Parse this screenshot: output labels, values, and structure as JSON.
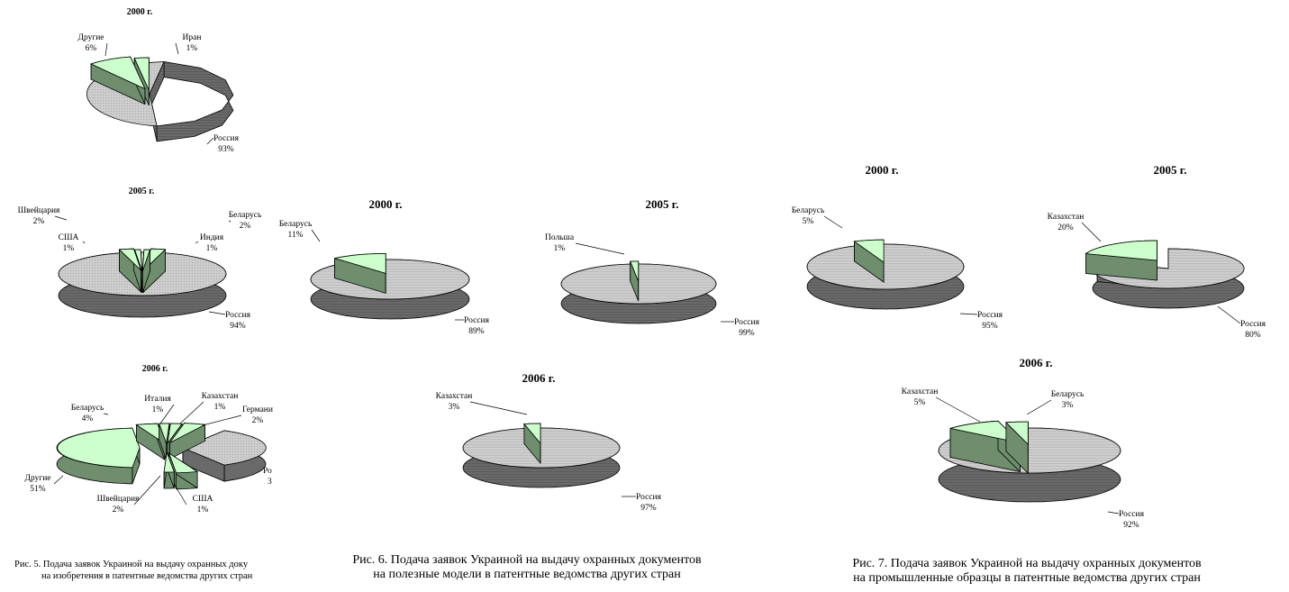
{
  "colors": {
    "russia_top": "#cdcdcd",
    "russia_side": "#6a6a6a",
    "slice_top": "#ccffcc",
    "slice_side": "#6e8e6e",
    "outline": "#000000"
  },
  "captions": {
    "fig5": [
      "Рис. 5. Подача заявок Украиной на выдачу охранных доку",
      "на изобретения в патентные ведомства других стран"
    ],
    "fig6": [
      "Рис. 6. Подача заявок Украиной на выдачу охранных документов",
      "на полезные модели в патентные ведомства других стран"
    ],
    "fig7": [
      "Рис. 7. Подача заявок Украиной на выдачу охранных документов",
      "на промышленные образцы в патентные ведомства других стран"
    ]
  },
  "chart_data": [
    {
      "figure": "Рис. 5",
      "type": "pie",
      "title": "2000 г.",
      "slices": [
        {
          "label": "Россия",
          "value": 93,
          "value_label": "93%"
        },
        {
          "label": "Иран",
          "value": 1,
          "value_label": "1%"
        },
        {
          "label": "Другие",
          "value": 6,
          "value_label": "6%"
        }
      ]
    },
    {
      "figure": "Рис. 5",
      "type": "pie",
      "title": "2005 г.",
      "slices": [
        {
          "label": "Россия",
          "value": 94,
          "value_label": "94%"
        },
        {
          "label": "Беларусь",
          "value": 2,
          "value_label": "2%"
        },
        {
          "label": "Индия",
          "value": 1,
          "value_label": "1%"
        },
        {
          "label": "США",
          "value": 1,
          "value_label": "1%"
        },
        {
          "label": "Швейцария",
          "value": 2,
          "value_label": "2%"
        }
      ]
    },
    {
      "figure": "Рис. 5",
      "type": "pie",
      "title": "2006 г.",
      "slices": [
        {
          "label": "Ро",
          "value": 3,
          "value_label": "3"
        },
        {
          "label": "Другие",
          "value": 51,
          "value_label": "51%"
        },
        {
          "label": "Беларусь",
          "value": 4,
          "value_label": "4%"
        },
        {
          "label": "Италия",
          "value": 1,
          "value_label": "1%"
        },
        {
          "label": "Казахстан",
          "value": 1,
          "value_label": "1%"
        },
        {
          "label": "Германи",
          "value": 2,
          "value_label": "2%"
        },
        {
          "label": "Швейцария",
          "value": 2,
          "value_label": "2%"
        },
        {
          "label": "США",
          "value": 1,
          "value_label": "1%"
        }
      ]
    },
    {
      "figure": "Рис. 6",
      "type": "pie",
      "title": "2000 г.",
      "slices": [
        {
          "label": "Россия",
          "value": 89,
          "value_label": "89%"
        },
        {
          "label": "Беларусь",
          "value": 11,
          "value_label": "11%"
        }
      ]
    },
    {
      "figure": "Рис. 6",
      "type": "pie",
      "title": "2005 г.",
      "slices": [
        {
          "label": "Россия",
          "value": 99,
          "value_label": "99%"
        },
        {
          "label": "Польша",
          "value": 1,
          "value_label": "1%"
        }
      ]
    },
    {
      "figure": "Рис. 6",
      "type": "pie",
      "title": "2006 г.",
      "slices": [
        {
          "label": "Россия",
          "value": 97,
          "value_label": "97%"
        },
        {
          "label": "Казахстан",
          "value": 3,
          "value_label": "3%"
        }
      ]
    },
    {
      "figure": "Рис. 7",
      "type": "pie",
      "title": "2000 г.",
      "slices": [
        {
          "label": "Россия",
          "value": 95,
          "value_label": "95%"
        },
        {
          "label": "Беларусь",
          "value": 5,
          "value_label": "5%"
        }
      ]
    },
    {
      "figure": "Рис. 7",
      "type": "pie",
      "title": "2005 г.",
      "slices": [
        {
          "label": "Россия",
          "value": 80,
          "value_label": "80%"
        },
        {
          "label": "Казахстан",
          "value": 20,
          "value_label": "20%"
        }
      ]
    },
    {
      "figure": "Рис. 7",
      "type": "pie",
      "title": "2006 г.",
      "slices": [
        {
          "label": "Россия",
          "value": 92,
          "value_label": "92%"
        },
        {
          "label": "Казахстан",
          "value": 5,
          "value_label": "5%"
        },
        {
          "label": "Беларусь",
          "value": 3,
          "value_label": "3%"
        }
      ]
    }
  ]
}
